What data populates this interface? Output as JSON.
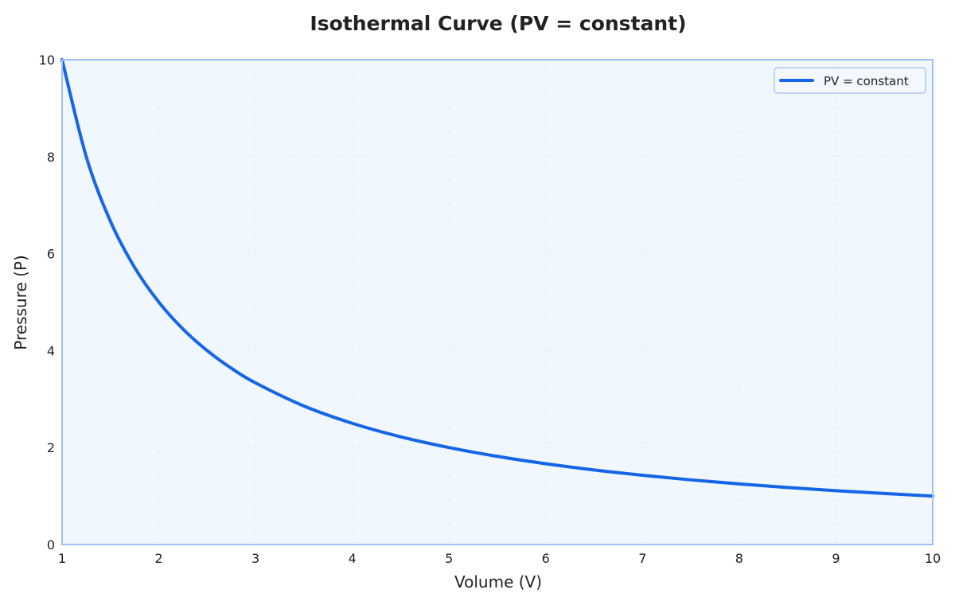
{
  "chart_data": {
    "type": "line",
    "title": "Isothermal Curve (PV = constant)",
    "xlabel": "Volume (V)",
    "ylabel": "Pressure (P)",
    "xlim": [
      1,
      10
    ],
    "ylim": [
      0,
      10
    ],
    "xticks": [
      "1",
      "2",
      "3",
      "4",
      "5",
      "6",
      "7",
      "8",
      "9",
      "10"
    ],
    "yticks": [
      "0",
      "2",
      "4",
      "6",
      "8",
      "10"
    ],
    "grid": true,
    "legend_position": "top-right",
    "series": [
      {
        "name": "PV = constant",
        "color": "#1565e8",
        "x": [
          1,
          1.25,
          1.5,
          1.75,
          2,
          2.25,
          2.5,
          2.75,
          3,
          3.5,
          4,
          4.5,
          5,
          5.5,
          6,
          6.5,
          7,
          7.5,
          8,
          8.5,
          9,
          9.5,
          10
        ],
        "y": [
          10,
          8,
          6.667,
          5.714,
          5,
          4.444,
          4,
          3.636,
          3.333,
          2.857,
          2.5,
          2.222,
          2,
          1.818,
          1.667,
          1.538,
          1.429,
          1.333,
          1.25,
          1.176,
          1.111,
          1.053,
          1
        ]
      }
    ],
    "colors": {
      "plot_background": "#f1f7fe",
      "frame": "#9dc0f5",
      "grid": "#dde6f3"
    }
  }
}
